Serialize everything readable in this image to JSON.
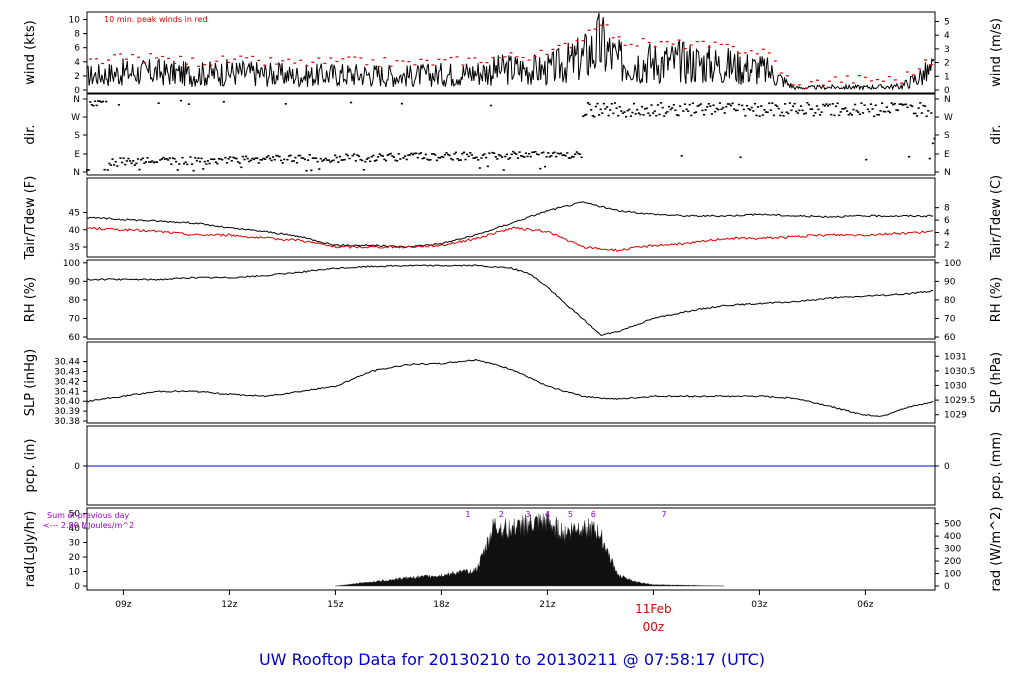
{
  "footer_title": "UW Rooftop Data for 20130210  to  20130211 @ 07:58:17  (UTC)",
  "colors": {
    "accent_red": "#dd0000",
    "precip_blue": "#0000cc",
    "note_purple": "#9900cc",
    "ink": "#000000"
  },
  "x_axis": {
    "tick_labels": [
      "09z",
      "12z",
      "15z",
      "18z",
      "21z",
      "03z",
      "06z"
    ],
    "tick_hours": [
      9,
      12,
      15,
      18,
      21,
      27,
      30
    ],
    "day_label": "11Feb",
    "day_label_2": "00z",
    "day_hour": 24,
    "range_hours": [
      7.97,
      31.97
    ]
  },
  "panels": {
    "wind": {
      "left_label": "wind (kts)",
      "right_label": "wind (m/s)",
      "left_ticks": [
        "0",
        "2",
        "4",
        "6",
        "8",
        "10"
      ],
      "right_ticks": [
        "0",
        "1",
        "2",
        "3",
        "4",
        "5"
      ],
      "note": "10 min. peak winds in red"
    },
    "dir": {
      "left_label": "dir.",
      "right_label": "dir.",
      "left_ticks": [
        "N",
        "E",
        "S",
        "W",
        "N"
      ],
      "right_ticks": [
        "N",
        "E",
        "S",
        "W",
        "N"
      ]
    },
    "temp": {
      "left_label": "Tair/Tdew (F)",
      "right_label": "Tair/Tdew (C)",
      "left_ticks": [
        "35",
        "40",
        "45"
      ],
      "right_ticks": [
        "2",
        "4",
        "6",
        "8"
      ]
    },
    "rh": {
      "left_label": "RH (%)",
      "right_label": "RH (%)",
      "left_ticks": [
        "60",
        "70",
        "80",
        "90",
        "100"
      ],
      "right_ticks": [
        "60",
        "70",
        "80",
        "90",
        "100"
      ]
    },
    "slp": {
      "left_label": "SLP (inHg)",
      "right_label": "SLP (hPa)",
      "left_ticks": [
        "30.38",
        "30.39",
        "30.40",
        "30.41",
        "30.42",
        "30.43",
        "30.44"
      ],
      "right_ticks": [
        "1029",
        "1029.5",
        "1030",
        "1030.5",
        "1031"
      ]
    },
    "pcp": {
      "left_label": "pcp. (in)",
      "right_label": "pcp. (mm)",
      "left_ticks": [
        "0"
      ],
      "right_ticks": [
        "0"
      ]
    },
    "rad": {
      "left_label": "rad(Lgly/hr)",
      "right_label": "rad (W/m^2)",
      "left_ticks": [
        "0",
        "10",
        "20",
        "30",
        "40",
        "50"
      ],
      "right_ticks": [
        "0",
        "100",
        "200",
        "300",
        "400",
        "500"
      ],
      "note_line1": "Sum of previous day",
      "note_line2": "<--- 2.80 MJoules/m^2",
      "hour_marks": [
        "1",
        "2",
        "3",
        "4",
        "5",
        "6",
        "7"
      ],
      "hour_mark_times": [
        18.75,
        19.7,
        20.45,
        21.0,
        21.65,
        22.3,
        24.3
      ]
    }
  },
  "chart_data": [
    {
      "type": "line",
      "title": "",
      "xlabel": "",
      "ylabel": "wind (kts)",
      "ylim": [
        0,
        10.5
      ],
      "x_hours": [
        8,
        9,
        10,
        11,
        12,
        13,
        14,
        15,
        16,
        17,
        18,
        19,
        20,
        21,
        22,
        22.5,
        23,
        24,
        25,
        26,
        27,
        27.3,
        28,
        29,
        30,
        31,
        32
      ],
      "series": [
        {
          "name": "wind",
          "values": [
            2,
            2.5,
            2.5,
            2.2,
            2.5,
            2.3,
            2,
            2.2,
            2.2,
            2,
            2.2,
            2.5,
            3,
            2.8,
            4.5,
            6.5,
            4,
            4,
            4,
            3.5,
            3,
            2.5,
            0.3,
            0.4,
            0.4,
            0.5,
            3
          ]
        },
        {
          "name": "10 min. peak winds",
          "values": [
            4,
            4.5,
            4.5,
            4,
            4.2,
            4,
            3.8,
            4,
            4,
            3.8,
            4,
            4.3,
            4.8,
            5,
            7.5,
            10,
            7,
            6.5,
            6.5,
            6,
            5.5,
            5,
            0.3,
            1.5,
            1.5,
            1.5,
            4.5
          ]
        }
      ]
    },
    {
      "type": "scatter",
      "title": "",
      "ylabel": "dir.",
      "y_ticks": [
        "N",
        "E",
        "S",
        "W",
        "N"
      ],
      "x_hours": [
        8,
        10,
        12,
        14,
        16,
        18,
        20,
        21.5,
        22,
        24,
        26,
        28,
        30,
        32
      ],
      "series": [
        {
          "name": "direction",
          "values": [
            "N",
            "E",
            "E",
            "E",
            "E",
            "E",
            "E",
            "E",
            "W",
            "W",
            "W",
            "W",
            "W",
            "W"
          ]
        }
      ]
    },
    {
      "type": "line",
      "title": "",
      "ylabel": "Tair/Tdew (F)",
      "ylim": [
        33,
        49
      ],
      "x_hours": [
        8,
        9,
        10,
        11,
        12,
        13,
        14,
        15,
        16,
        17,
        18,
        19,
        20,
        21,
        22,
        23,
        24,
        25,
        26,
        27,
        28,
        29,
        30,
        31,
        32
      ],
      "series": [
        {
          "name": "Tair",
          "values": [
            43.5,
            43,
            42.5,
            42,
            40.5,
            39.5,
            38,
            35.5,
            35.5,
            35,
            36,
            38.5,
            42,
            45.5,
            48,
            45.5,
            44.5,
            44,
            44,
            44.5,
            44,
            43.8,
            44,
            44,
            44
          ]
        },
        {
          "name": "Tdew",
          "values": [
            40.5,
            40,
            39.5,
            38.5,
            38.5,
            37.5,
            37,
            35,
            35,
            35,
            35.5,
            37.5,
            40.5,
            39.5,
            35,
            34,
            35.5,
            36,
            37.5,
            37.5,
            38,
            38.5,
            38.5,
            39,
            39.5
          ]
        }
      ]
    },
    {
      "type": "line",
      "title": "",
      "ylabel": "RH (%)",
      "ylim": [
        58,
        100
      ],
      "x_hours": [
        8,
        9,
        10,
        11,
        12,
        13,
        14,
        15,
        16,
        17,
        18,
        19,
        20,
        20.5,
        21,
        21.5,
        22,
        22.5,
        23,
        24,
        25,
        26,
        27,
        28,
        29,
        30,
        31,
        32
      ],
      "series": [
        {
          "name": "RH",
          "values": [
            91,
            91,
            91,
            92,
            92,
            93,
            95,
            97,
            98,
            98.5,
            98.5,
            98.5,
            97,
            94,
            87,
            78,
            70,
            61,
            63,
            70,
            74,
            77,
            78,
            79,
            81,
            82,
            83,
            85
          ]
        }
      ]
    },
    {
      "type": "line",
      "title": "",
      "ylabel": "SLP (inHg)",
      "ylim": [
        30.38,
        30.447
      ],
      "x_hours": [
        8,
        9,
        10,
        11,
        12,
        13,
        14,
        15,
        16,
        17,
        18,
        19,
        20,
        21,
        22,
        23,
        24,
        25,
        26,
        27,
        28,
        29,
        29.5,
        30,
        30.5,
        31,
        32
      ],
      "series": [
        {
          "name": "SLP",
          "values": [
            30.4,
            30.405,
            30.41,
            30.41,
            30.407,
            30.405,
            30.41,
            30.415,
            30.43,
            30.437,
            30.438,
            30.442,
            30.432,
            30.415,
            30.405,
            30.402,
            30.405,
            30.405,
            30.405,
            30.405,
            30.403,
            30.395,
            30.39,
            30.386,
            30.385,
            30.392,
            30.4
          ]
        }
      ]
    },
    {
      "type": "line",
      "title": "",
      "ylabel": "pcp. (in)",
      "ylim": [
        -1,
        1
      ],
      "x_hours": [
        8,
        32
      ],
      "series": [
        {
          "name": "precipitation",
          "values": [
            0,
            0
          ]
        }
      ]
    },
    {
      "type": "area",
      "title": "",
      "ylabel": "rad(Lgly/hr)",
      "ylim": [
        0,
        50
      ],
      "x_hours": [
        15,
        16,
        17,
        18,
        19,
        19.5,
        20,
        20.5,
        21,
        21.5,
        22,
        22.5,
        23,
        23.5,
        24,
        25,
        26
      ],
      "series": [
        {
          "name": "radiation",
          "values": [
            0,
            3,
            6,
            8,
            12,
            45,
            42,
            46,
            47,
            40,
            45,
            38,
            8,
            3,
            1,
            0.5,
            0
          ]
        }
      ]
    }
  ]
}
